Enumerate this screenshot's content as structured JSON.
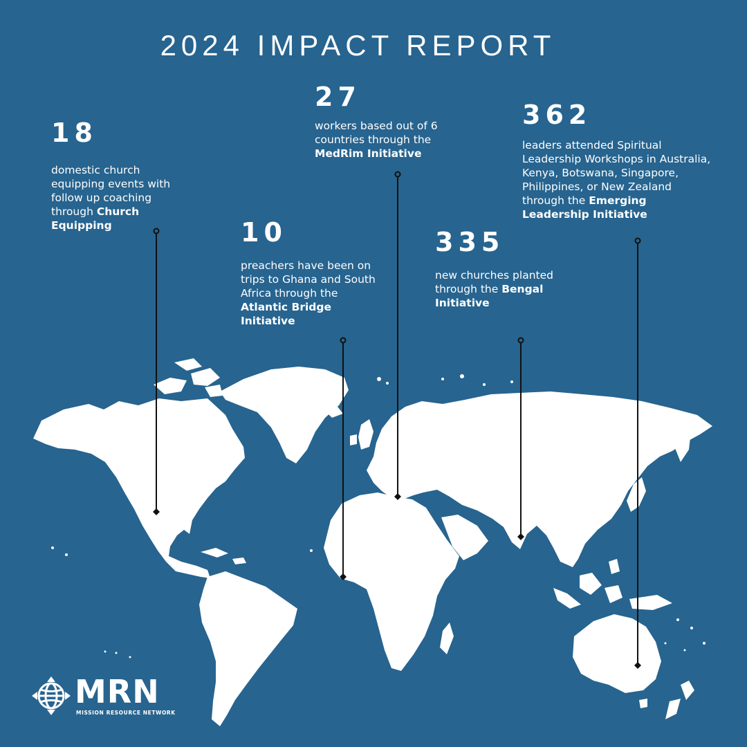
{
  "title": "2024 IMPACT REPORT",
  "colors": {
    "background": "#27648f",
    "land": "#ffffff",
    "pointer": "#111111",
    "text": "#ffffff"
  },
  "stats": [
    {
      "id": "church-equipping",
      "number": "18",
      "text": "domestic church equipping events with follow up coaching through ",
      "highlight": "Church Equipping"
    },
    {
      "id": "atlantic-bridge",
      "number": "10",
      "text": "preachers have been on trips to Ghana and South Africa through the ",
      "highlight": "Atlantic Bridge Initiative"
    },
    {
      "id": "medrim",
      "number": "27",
      "text": "workers based out of 6 countries through the ",
      "highlight": "MedRim Initiative"
    },
    {
      "id": "bengal",
      "number": "335",
      "text": "new churches planted through the ",
      "highlight": "Bengal Initiative"
    },
    {
      "id": "emerging-leadership",
      "number": "362",
      "text": "leaders attended Spiritual Leadership Workshops in Australia, Kenya, Botswana, Singapore, Philippines, or New Zealand through the ",
      "highlight": "Emerging Leadership Initiative"
    }
  ],
  "logo": {
    "mark": "MRN",
    "name": "MISSION RESOURCE NETWORK",
    "icon": "globe-icon"
  }
}
